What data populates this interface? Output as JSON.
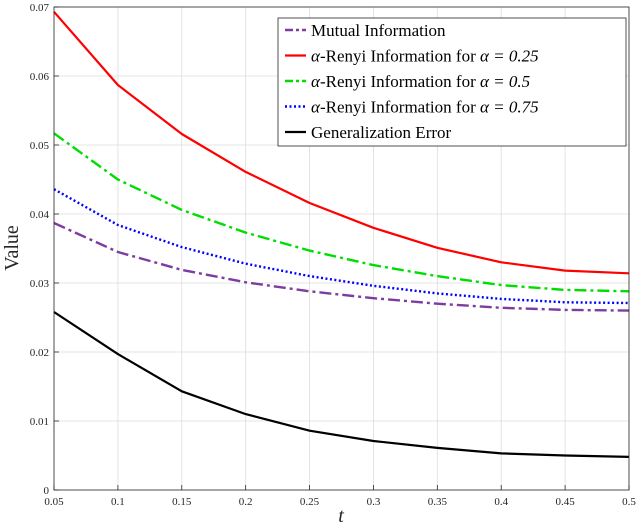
{
  "chart_data": {
    "type": "line",
    "title": "",
    "xlabel": "t",
    "ylabel": "Value",
    "xlim": [
      0.05,
      0.5
    ],
    "ylim": [
      0,
      0.07
    ],
    "grid": true,
    "legend_position": "top-right",
    "x": [
      0.05,
      0.1,
      0.15,
      0.2,
      0.25,
      0.3,
      0.35,
      0.4,
      0.45,
      0.5
    ],
    "x_ticks": [
      "0.05",
      "0.1",
      "0.15",
      "0.2",
      "0.25",
      "0.3",
      "0.35",
      "0.4",
      "0.45",
      "0.5"
    ],
    "y_ticks": [
      "0",
      "0.01",
      "0.02",
      "0.03",
      "0.04",
      "0.05",
      "0.06",
      "0.07"
    ],
    "series": [
      {
        "name": "Mutual Information",
        "legend_prefix": "",
        "legend_eq": "",
        "color": "#7E3BA0",
        "style": "dash-dot",
        "values": [
          0.0387,
          0.0345,
          0.0319,
          0.0301,
          0.0288,
          0.0278,
          0.027,
          0.0264,
          0.0261,
          0.026
        ]
      },
      {
        "name": "-Renyi Information for ",
        "legend_prefix": "α",
        "legend_eq": "α = 0.25",
        "color": "#FF0000",
        "style": "solid",
        "values": [
          0.0693,
          0.0587,
          0.0516,
          0.0461,
          0.0416,
          0.038,
          0.0351,
          0.033,
          0.0318,
          0.0314
        ]
      },
      {
        "name": "-Renyi Information for ",
        "legend_prefix": "α",
        "legend_eq": "α = 0.5",
        "color": "#00DD00",
        "style": "dash-dot",
        "values": [
          0.0517,
          0.045,
          0.0406,
          0.0373,
          0.0347,
          0.0326,
          0.031,
          0.0297,
          0.029,
          0.0288
        ]
      },
      {
        "name": "-Renyi Information for ",
        "legend_prefix": "α",
        "legend_eq": "α = 0.75",
        "color": "#0000FF",
        "style": "dotted",
        "values": [
          0.0436,
          0.0384,
          0.0352,
          0.0328,
          0.031,
          0.0296,
          0.0285,
          0.0277,
          0.0272,
          0.0271
        ]
      },
      {
        "name": "Generalization Error",
        "legend_prefix": "",
        "legend_eq": "",
        "color": "#000000",
        "style": "solid",
        "values": [
          0.0258,
          0.0197,
          0.0143,
          0.011,
          0.0086,
          0.0071,
          0.0061,
          0.0053,
          0.005,
          0.0048
        ]
      }
    ]
  }
}
